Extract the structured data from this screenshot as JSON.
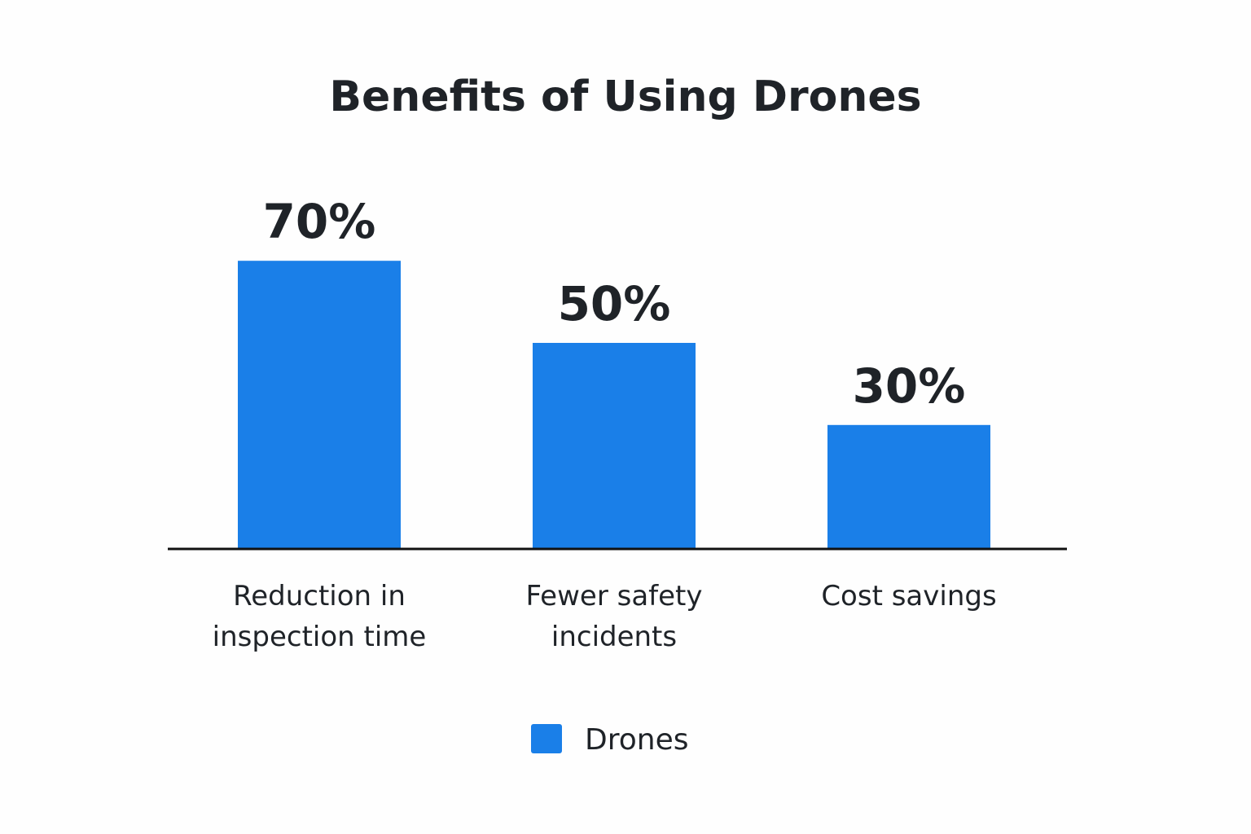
{
  "chart_data": {
    "type": "bar",
    "title": "Benefits of Using Drones",
    "categories": [
      "Reduction in inspection time",
      "Fewer safety incidents",
      "Cost savings"
    ],
    "category_lines": [
      [
        "Reduction in",
        "inspection time"
      ],
      [
        "Fewer safety",
        "incidents"
      ],
      [
        "Cost savings"
      ]
    ],
    "series": [
      {
        "name": "Drones",
        "values": [
          70,
          50,
          30
        ],
        "color": "#1a7fe8"
      }
    ],
    "data_labels": [
      "70%",
      "50%",
      "30%"
    ],
    "xlabel": "",
    "ylabel": "",
    "ylim": [
      0,
      100
    ],
    "grid": false,
    "legend": {
      "position": "bottom-center",
      "entries": [
        "Drones"
      ]
    }
  }
}
